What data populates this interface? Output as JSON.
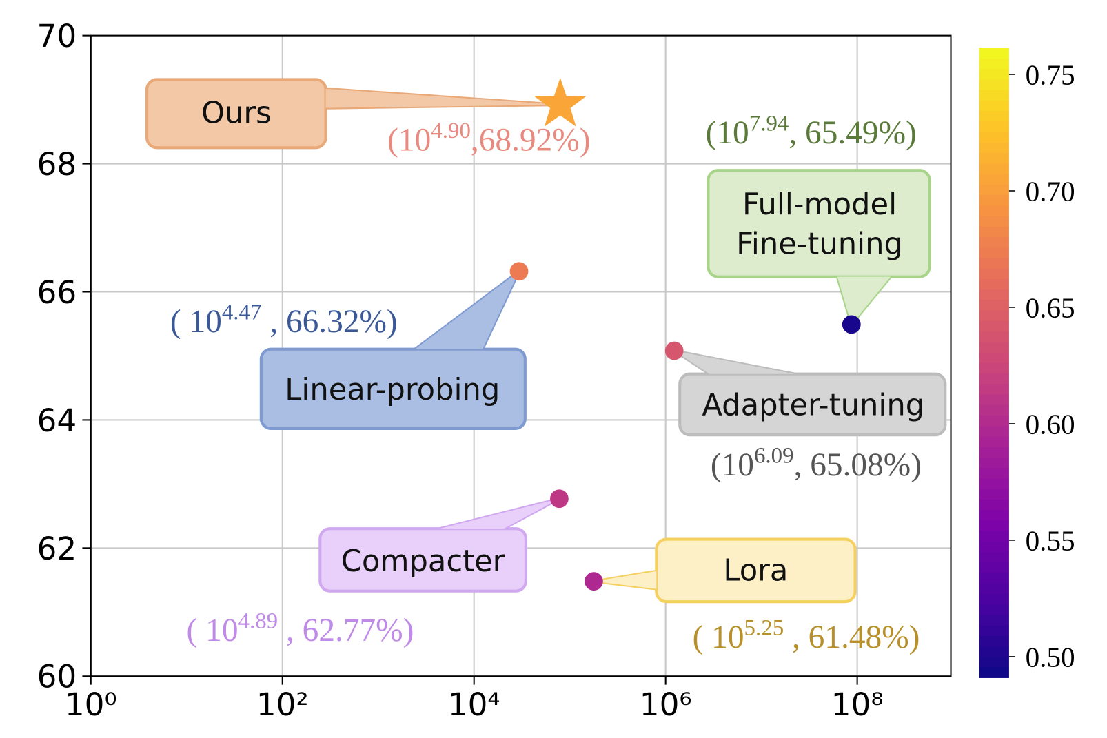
{
  "chart_data": {
    "type": "scatter",
    "x_scale": "log",
    "grid": true,
    "colormap": "plasma",
    "xlim": [
      1,
      950000000
    ],
    "ylim": [
      60,
      70
    ],
    "xticks": [
      {
        "value": 1,
        "label": "10⁰"
      },
      {
        "value": 100,
        "label": "10²"
      },
      {
        "value": 10000,
        "label": "10⁴"
      },
      {
        "value": 1000000,
        "label": "10⁶"
      },
      {
        "value": 100000000,
        "label": "10⁸"
      }
    ],
    "yticks": [
      60,
      62,
      64,
      66,
      68,
      70
    ],
    "clim": [
      0.491,
      0.7615
    ],
    "cticks": [
      {
        "value": 0.5,
        "label": "0.50"
      },
      {
        "value": 0.55,
        "label": "0.55"
      },
      {
        "value": 0.6,
        "label": "0.60"
      },
      {
        "value": 0.65,
        "label": "0.65"
      },
      {
        "value": 0.7,
        "label": "0.70"
      },
      {
        "value": 0.75,
        "label": "0.75"
      }
    ],
    "points": [
      {
        "name_lines": [
          "Ours"
        ],
        "x": 79432.82,
        "y": 68.92,
        "c": 0.705,
        "marker": "star",
        "box_color": "#f3c8a6",
        "border_color": "#e8a878",
        "label": {
          "open": "(10",
          "exp": "4.90",
          "close": ",68.92%)",
          "color": "#e88a80"
        }
      },
      {
        "name_lines": [
          "Linear-probing"
        ],
        "x": 29512.09,
        "y": 66.32,
        "c": 0.672,
        "marker": "circle",
        "box_color": "#aabde3",
        "border_color": "#7f9ad0",
        "label": {
          "open": "( 10",
          "exp": "4.47",
          "close": " , 66.32%)",
          "color": "#3b5998"
        }
      },
      {
        "name_lines": [
          "Full-model",
          "Fine-tuning"
        ],
        "x": 87096359.0,
        "y": 65.49,
        "c": 0.497,
        "marker": "circle",
        "box_color": "#ddeccd",
        "border_color": "#a8d48a",
        "label": {
          "open": "(10",
          "exp": "7.94",
          "close": ", 65.49%)",
          "color": "#5a7a3a"
        }
      },
      {
        "name_lines": [
          "Adapter-tuning"
        ],
        "x": 1230268.77,
        "y": 65.08,
        "c": 0.64,
        "marker": "circle",
        "box_color": "#d5d5d5",
        "border_color": "#bcbcbc",
        "label": {
          "open": "(10",
          "exp": "6.09",
          "close": ", 65.08%)",
          "color": "#555555"
        }
      },
      {
        "name_lines": [
          "Compacter"
        ],
        "x": 77624.71,
        "y": 62.77,
        "c": 0.612,
        "marker": "circle",
        "box_color": "#e8d0fa",
        "border_color": "#d0a8f0",
        "label": {
          "open": "( 10",
          "exp": "4.89",
          "close": " , 62.77%)",
          "color": "#c08ae8"
        }
      },
      {
        "name_lines": [
          "Lora"
        ],
        "x": 177827.94,
        "y": 61.48,
        "c": 0.598,
        "marker": "circle",
        "box_color": "#fdf0c6",
        "border_color": "#f5d060",
        "label": {
          "open": "( 10",
          "exp": "5.25",
          "close": " , 61.48%)",
          "color": "#b8902a"
        }
      }
    ]
  }
}
